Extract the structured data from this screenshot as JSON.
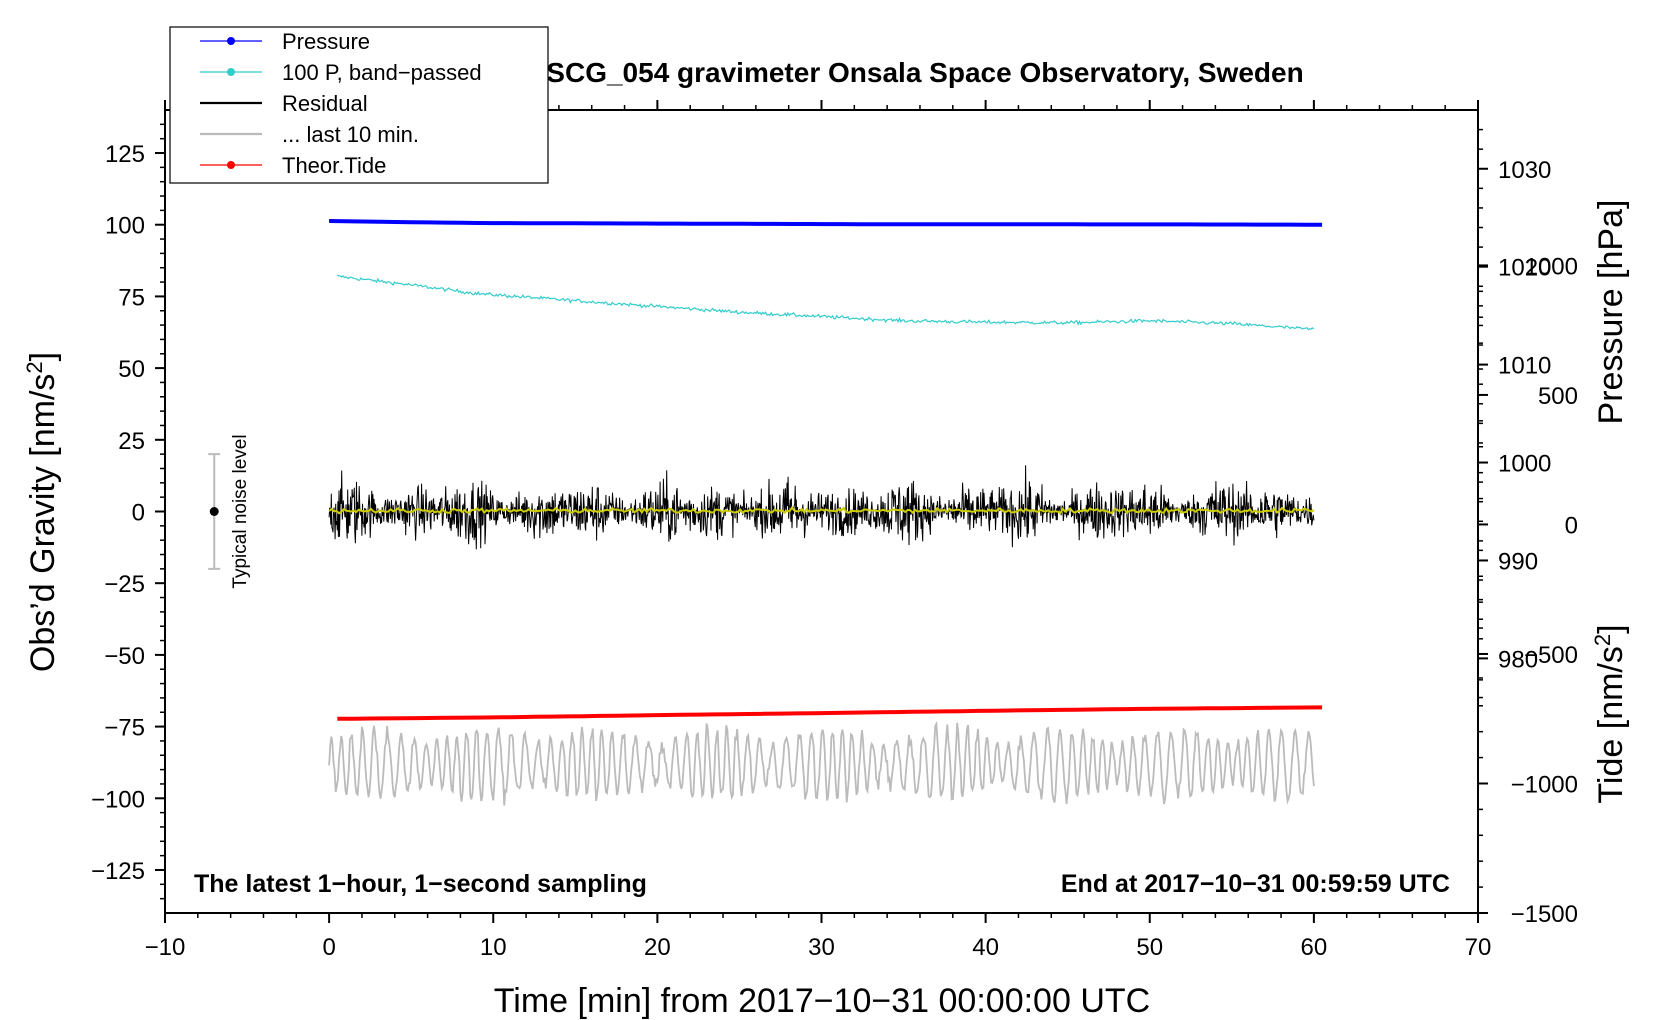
{
  "chart_data": {
    "type": "line",
    "title": "SCG_054 gravimeter Onsala Space Observatory, Sweden",
    "xlabel": "Time [min] from 2017−10−31 00:00:00 UTC",
    "ylabel_left": "Obs’d Gravity [nm/s",
    "ylabel_left_sup": "2",
    "ylabel_left_tail": "]",
    "ylabel_right_pressure": "Pressure [hPa]",
    "ylabel_right_tide": "Tide [nm/s",
    "ylabel_right_tide_sup": "2",
    "ylabel_right_tide_tail": "]",
    "xlim": [
      -10,
      70
    ],
    "ylim": [
      -140,
      140
    ],
    "x_ticks": [
      -10,
      0,
      10,
      20,
      30,
      40,
      50,
      60,
      70
    ],
    "x_tick_labels": [
      "−10",
      "0",
      "10",
      "20",
      "30",
      "40",
      "50",
      "60",
      "70"
    ],
    "y_ticks": [
      125,
      100,
      75,
      50,
      25,
      0,
      -25,
      -50,
      -75,
      -100,
      -125
    ],
    "y_tick_labels": [
      "125",
      "100",
      "75",
      "50",
      "25",
      "0",
      "−25",
      "−50",
      "−75",
      "−100",
      "−125"
    ],
    "pressure_axis": {
      "range": [
        954,
        1036
      ],
      "ticks": [
        1030,
        1020,
        1010,
        1000,
        990,
        980
      ],
      "tick_labels": [
        "1030",
        "1020",
        "1010",
        "1000",
        "990",
        "980"
      ]
    },
    "tide_axis": {
      "range": [
        -1500,
        1600
      ],
      "ticks": [
        1000,
        500,
        0,
        -500,
        -1000,
        -1500
      ],
      "tick_labels": [
        "1000",
        "500",
        "0",
        "−500",
        "−1000",
        "−1500"
      ]
    },
    "legend": [
      {
        "label": "Pressure",
        "color": "#0000ff",
        "marker": "dot"
      },
      {
        "label": "100 P, band−passed",
        "color": "#33cccc",
        "marker": "dot"
      },
      {
        "label": "Residual",
        "color": "#000000",
        "marker": "none"
      },
      {
        "label": "... last 10 min.",
        "color": "#bbbbbb",
        "marker": "none"
      },
      {
        "label": "Theor.Tide",
        "color": "#ff0000",
        "marker": "dot"
      }
    ],
    "series": [
      {
        "name": "Pressure",
        "color": "#0000ff",
        "x": [
          0,
          3.5,
          9,
          20,
          31,
          52,
          60.5
        ],
        "y": [
          101.3,
          101,
          100.6,
          100.4,
          100.2,
          100.1,
          100
        ],
        "noise": 0
      },
      {
        "name": "100 P, band−passed",
        "color": "#33cccc",
        "x": [
          0.5,
          5,
          9,
          15,
          20,
          25,
          30,
          35,
          40,
          45,
          50,
          55,
          60
        ],
        "y": [
          82,
          79,
          76,
          73.5,
          71.5,
          69.5,
          68,
          66.5,
          66,
          65.8,
          66.5,
          65.5,
          63.5
        ],
        "noise": 0.6
      },
      {
        "name": "Residual",
        "color": "#000000",
        "x": [
          0,
          60
        ],
        "y": [
          0,
          0
        ],
        "noise": 11
      },
      {
        "name": "Residual smoothed",
        "color": "#cccc00",
        "x": [
          0,
          60
        ],
        "y": [
          0.3,
          0.3
        ],
        "noise": 0.8
      },
      {
        "name": "... last 10 min.",
        "color": "#bbbbbb",
        "x": [
          0,
          60
        ],
        "y": [
          -88,
          -88
        ],
        "noise": 12
      },
      {
        "name": "Theor.Tide",
        "color": "#ff0000",
        "x": [
          0.5,
          10,
          20,
          30,
          40,
          50,
          60.5
        ],
        "y": [
          -72.3,
          -71.8,
          -71,
          -70.3,
          -69.5,
          -68.8,
          -68.3
        ],
        "noise": 0
      }
    ],
    "noise_level": {
      "label": "Typical noise level",
      "x": -7,
      "y": 0,
      "range": [
        -20,
        20
      ]
    },
    "annotation_left": "The latest 1−hour, 1−second sampling",
    "annotation_right": "End at 2017−10−31 00:59:59 UTC"
  }
}
